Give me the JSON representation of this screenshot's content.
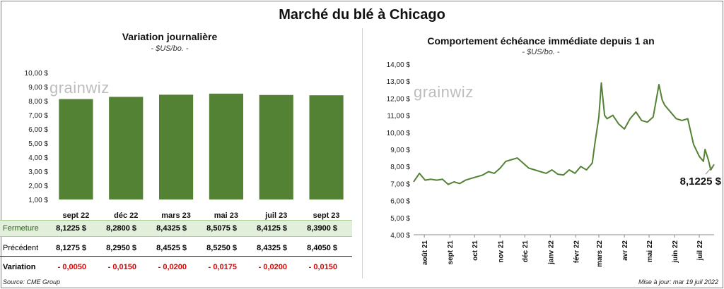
{
  "title": "Marché du blé à Chicago",
  "left": {
    "subtitle": "Variation journalière",
    "unit": "- $US/bo. -",
    "watermark": "grainwiz",
    "chart_data": {
      "type": "bar",
      "categories": [
        "sept 22",
        "déc 22",
        "mars 23",
        "mai 23",
        "juil 23",
        "sept 23"
      ],
      "values": [
        8.1225,
        8.28,
        8.4325,
        8.5075,
        8.4125,
        8.39
      ],
      "ylim": [
        1,
        10
      ],
      "yticks": [
        "1,00 $",
        "2,00 $",
        "3,00 $",
        "4,00 $",
        "5,00 $",
        "6,00 $",
        "7,00 $",
        "8,00 $",
        "9,00 $",
        "10,00 $"
      ],
      "bar_color": "#548235",
      "grid": false
    },
    "table": {
      "fermeture_label": "Fermeture",
      "fermeture": [
        "8,1225  $",
        "8,2800  $",
        "8,4325  $",
        "8,5075  $",
        "8,4125  $",
        "8,3900  $"
      ],
      "precedent_label": "Précédent",
      "precedent": [
        "8,1275  $",
        "8,2950  $",
        "8,4525  $",
        "8,5250  $",
        "8,4325  $",
        "8,4050  $"
      ],
      "variation_label": "Variation",
      "variation": [
        "- 0,0050",
        "- 0,0150",
        "- 0,0200",
        "- 0,0175",
        "- 0,0200",
        "- 0,0150"
      ]
    }
  },
  "right": {
    "subtitle": "Comportement  échéance immédiate depuis 1 an",
    "unit": "- $US/bo. -",
    "watermark": "grainwiz",
    "chart_data": {
      "type": "line",
      "ylim": [
        4,
        14
      ],
      "yticks": [
        "4,00 $",
        "5,00 $",
        "6,00 $",
        "7,00 $",
        "8,00 $",
        "9,00 $",
        "10,00 $",
        "11,00 $",
        "12,00 $",
        "13,00 $",
        "14,00 $"
      ],
      "xtick_labels": [
        "août 21",
        "sept 21",
        "oct 21",
        "nov 21",
        "déc 21",
        "janv 22",
        "févr 22",
        "mars 22",
        "avr 22",
        "mai 22",
        "juin 22",
        "juil 22"
      ],
      "x_months": [
        "2021-08",
        "2021-09",
        "2021-10",
        "2021-11",
        "2021-12",
        "2022-01",
        "2022-02",
        "2022-03",
        "2022-04",
        "2022-05",
        "2022-06",
        "2022-07"
      ],
      "series": [
        {
          "color": "#548235",
          "x": [
            "2021-07-19",
            "2021-07-26",
            "2021-08-02",
            "2021-08-09",
            "2021-08-16",
            "2021-08-23",
            "2021-08-30",
            "2021-09-06",
            "2021-09-13",
            "2021-09-20",
            "2021-09-27",
            "2021-10-04",
            "2021-10-11",
            "2021-10-18",
            "2021-10-25",
            "2021-11-01",
            "2021-11-08",
            "2021-11-15",
            "2021-11-22",
            "2021-11-29",
            "2021-12-06",
            "2021-12-13",
            "2021-12-20",
            "2021-12-27",
            "2022-01-03",
            "2022-01-10",
            "2022-01-17",
            "2022-01-24",
            "2022-01-31",
            "2022-02-07",
            "2022-02-14",
            "2022-02-21",
            "2022-02-24",
            "2022-03-01",
            "2022-03-04",
            "2022-03-08",
            "2022-03-11",
            "2022-03-18",
            "2022-03-25",
            "2022-04-01",
            "2022-04-08",
            "2022-04-15",
            "2022-04-22",
            "2022-04-29",
            "2022-05-06",
            "2022-05-13",
            "2022-05-17",
            "2022-05-20",
            "2022-05-27",
            "2022-06-03",
            "2022-06-10",
            "2022-06-17",
            "2022-06-24",
            "2022-07-01",
            "2022-07-06",
            "2022-07-08",
            "2022-07-12",
            "2022-07-15",
            "2022-07-19"
          ],
          "y": [
            7.1,
            7.6,
            7.2,
            7.25,
            7.2,
            7.25,
            6.95,
            7.1,
            7.0,
            7.2,
            7.3,
            7.4,
            7.5,
            7.7,
            7.6,
            7.9,
            8.3,
            8.4,
            8.5,
            8.2,
            7.9,
            7.8,
            7.7,
            7.6,
            7.8,
            7.55,
            7.5,
            7.8,
            7.6,
            8.0,
            7.8,
            8.2,
            9.3,
            10.9,
            12.9,
            11.0,
            10.8,
            11.0,
            10.5,
            10.2,
            10.8,
            11.2,
            10.7,
            10.6,
            10.9,
            12.8,
            11.9,
            11.6,
            11.2,
            10.8,
            10.7,
            10.8,
            9.3,
            8.6,
            8.3,
            9.0,
            8.4,
            7.8,
            8.1225
          ]
        }
      ],
      "last_value_label": "8,1225 $",
      "grid": false
    }
  },
  "footer": {
    "source": "Source: CME Group",
    "updated": "Mise à jour: mar 19 juil 2022"
  }
}
